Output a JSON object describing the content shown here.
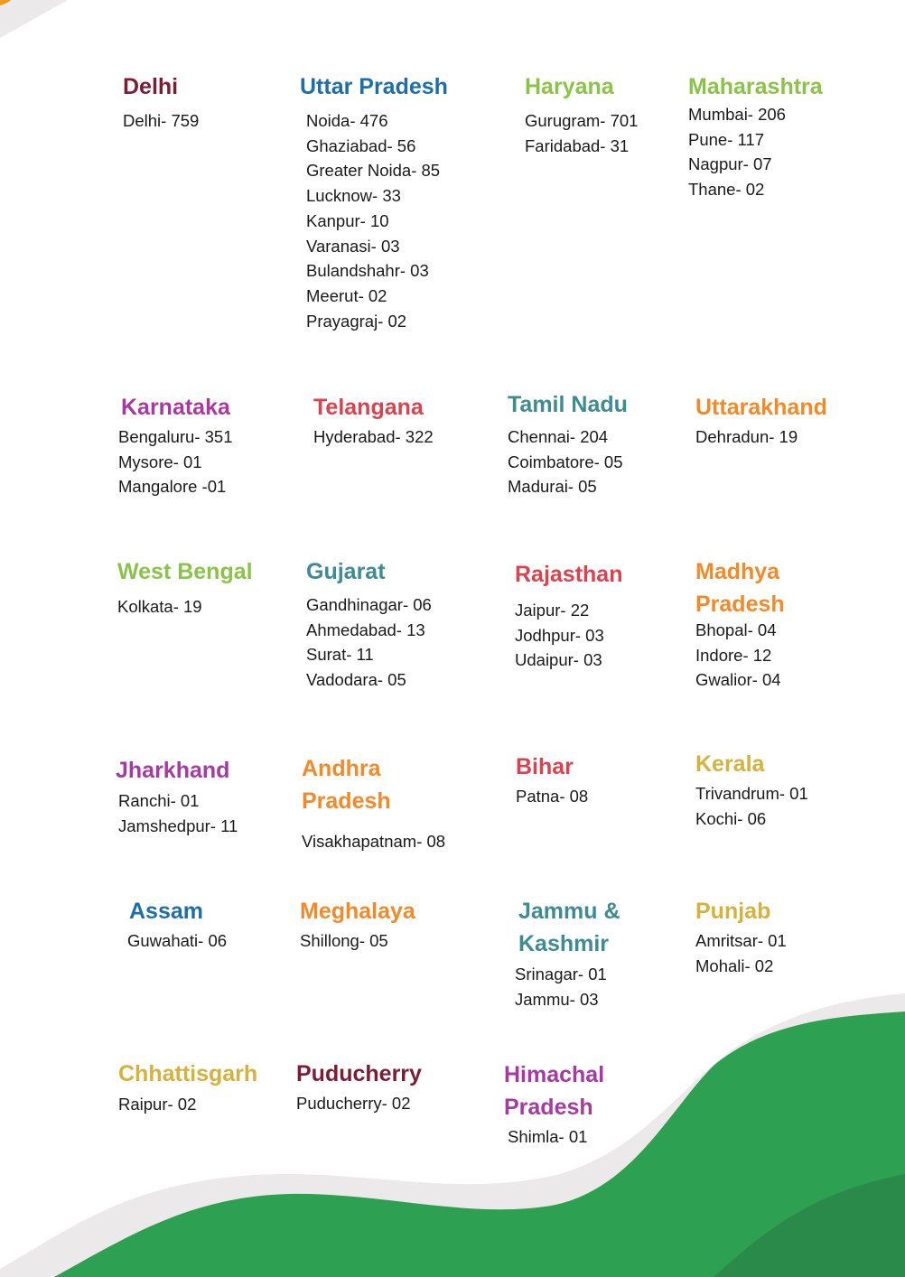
{
  "colors": {
    "maroon": "#7b1d34",
    "blue": "#1f6ea8",
    "green": "#8bc34a",
    "purple": "#a53a9f",
    "red": "#d9434f",
    "teal": "#3f8b92",
    "orange": "#f08a2b",
    "gold": "#d3b23f",
    "wave_green": "#2ea052",
    "wave_dark_green": "#2a8a4a",
    "wave_gray": "#ebe9e9"
  },
  "states": [
    {
      "name": "Delhi",
      "color": "maroon",
      "cities": [
        "Delhi- 759"
      ]
    },
    {
      "name": "Uttar Pradesh",
      "color": "blue",
      "cities": [
        "Noida- 476",
        "Ghaziabad- 56",
        "Greater Noida- 85",
        "Lucknow- 33",
        "Kanpur- 10",
        "Varanasi- 03",
        "Bulandshahr- 03",
        "Meerut- 02",
        "Prayagraj- 02"
      ]
    },
    {
      "name": "Haryana",
      "color": "green",
      "cities": [
        "Gurugram- 701",
        "Faridabad- 31"
      ]
    },
    {
      "name": "Maharashtra",
      "color": "green",
      "cities": [
        "Mumbai- 206",
        "Pune- 117",
        "Nagpur- 07",
        "Thane- 02"
      ]
    },
    {
      "name": "Karnataka",
      "color": "purple",
      "cities": [
        "Bengaluru- 351",
        "Mysore- 01",
        "Mangalore -01"
      ]
    },
    {
      "name": "Telangana",
      "color": "red",
      "cities": [
        "Hyderabad- 322"
      ]
    },
    {
      "name": "Tamil Nadu",
      "color": "teal",
      "cities": [
        "Chennai- 204",
        "Coimbatore- 05",
        "Madurai- 05"
      ]
    },
    {
      "name": "Uttarakhand",
      "color": "orange",
      "cities": [
        "Dehradun- 19"
      ]
    },
    {
      "name": "West Bengal",
      "color": "green",
      "cities": [
        "Kolkata- 19"
      ]
    },
    {
      "name": "Gujarat",
      "color": "teal",
      "cities": [
        "Gandhinagar- 06",
        "Ahmedabad- 13",
        "Surat- 11",
        "Vadodara- 05"
      ]
    },
    {
      "name": "Rajasthan",
      "color": "red",
      "cities": [
        "Jaipur- 22",
        "Jodhpur- 03",
        "Udaipur- 03"
      ]
    },
    {
      "name": "Madhya Pradesh",
      "color": "orange",
      "cities": [
        "Bhopal- 04",
        "Indore- 12",
        "Gwalior- 04"
      ]
    },
    {
      "name": "Jharkhand",
      "color": "purple",
      "cities": [
        "Ranchi- 01",
        "Jamshedpur- 11"
      ]
    },
    {
      "name": "Andhra Pradesh",
      "color": "orange",
      "cities": [
        "Visakhapatnam- 08"
      ]
    },
    {
      "name": "Bihar",
      "color": "red",
      "cities": [
        "Patna- 08"
      ]
    },
    {
      "name": "Kerala",
      "color": "gold",
      "cities": [
        "Trivandrum- 01",
        "Kochi- 06"
      ]
    },
    {
      "name": "Assam",
      "color": "blue",
      "cities": [
        "Guwahati- 06"
      ]
    },
    {
      "name": "Meghalaya",
      "color": "orange",
      "cities": [
        "Shillong- 05"
      ]
    },
    {
      "name": "Jammu & Kashmir",
      "color": "teal",
      "cities": [
        "Srinagar- 01",
        "Jammu- 03"
      ]
    },
    {
      "name": "Punjab",
      "color": "gold",
      "cities": [
        "Amritsar- 01",
        "Mohali- 02"
      ]
    },
    {
      "name": "Chhattisgarh",
      "color": "gold",
      "cities": [
        "Raipur- 02"
      ]
    },
    {
      "name": "Puducherry",
      "color": "maroon",
      "cities": [
        "Puducherry- 02"
      ]
    },
    {
      "name": "Himachal Pradesh",
      "color": "purple",
      "cities": [
        "Shimla- 01"
      ]
    }
  ]
}
